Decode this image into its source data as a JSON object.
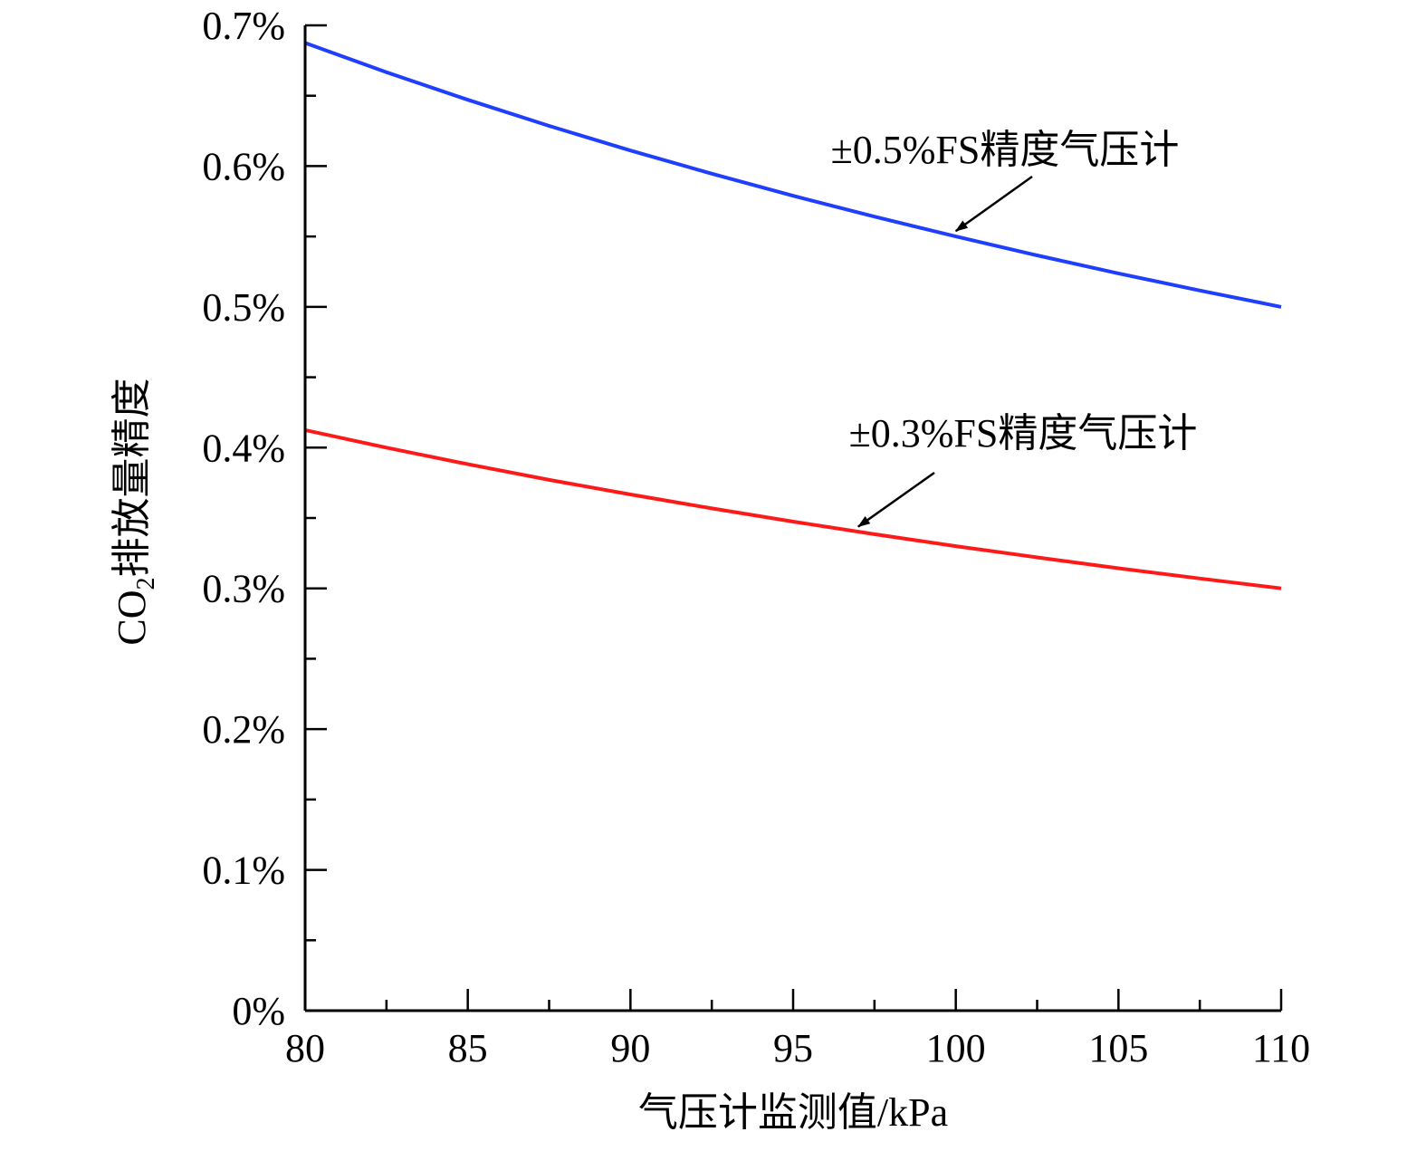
{
  "chart_data": {
    "type": "line",
    "xlabel": "气压计监测值/kPa",
    "ylabel_main": "CO",
    "ylabel_sub": "2",
    "ylabel_rest": "排放量精度",
    "xlim": [
      80,
      110
    ],
    "ylim": [
      0,
      0.7
    ],
    "x_ticks": [
      80,
      85,
      90,
      95,
      100,
      105,
      110
    ],
    "x_tick_labels": [
      "80",
      "85",
      "90",
      "95",
      "100",
      "105",
      "110"
    ],
    "y_ticks": [
      0,
      0.1,
      0.2,
      0.3,
      0.4,
      0.5,
      0.6,
      0.7
    ],
    "y_tick_labels": [
      "0%",
      "0.1%",
      "0.2%",
      "0.3%",
      "0.4%",
      "0.5%",
      "0.6%",
      "0.7%"
    ],
    "grid": false,
    "series": [
      {
        "name": "±0.5%FS精度气压计",
        "color": "#1f3fff",
        "x": [
          80,
          82.5,
          85,
          87.5,
          90,
          92.5,
          95,
          97.5,
          100,
          102.5,
          105,
          107.5,
          110
        ],
        "y": [
          0.6875,
          0.6667,
          0.6471,
          0.6286,
          0.6111,
          0.5946,
          0.5789,
          0.5641,
          0.55,
          0.5366,
          0.5238,
          0.5116,
          0.5
        ]
      },
      {
        "name": "±0.3%FS精度气压计",
        "color": "#ff1a1a",
        "x": [
          80,
          82.5,
          85,
          87.5,
          90,
          92.5,
          95,
          97.5,
          100,
          102.5,
          105,
          107.5,
          110
        ],
        "y": [
          0.4125,
          0.4,
          0.3882,
          0.3771,
          0.3667,
          0.3568,
          0.3474,
          0.3385,
          0.33,
          0.322,
          0.3143,
          0.307,
          0.3
        ]
      }
    ],
    "annotations": [
      {
        "text": "±0.5%FS精度气压计",
        "arrow_to": [
          100,
          0.55
        ]
      },
      {
        "text": "±0.3%FS精度气压计",
        "arrow_to": [
          97,
          0.34
        ]
      }
    ]
  }
}
